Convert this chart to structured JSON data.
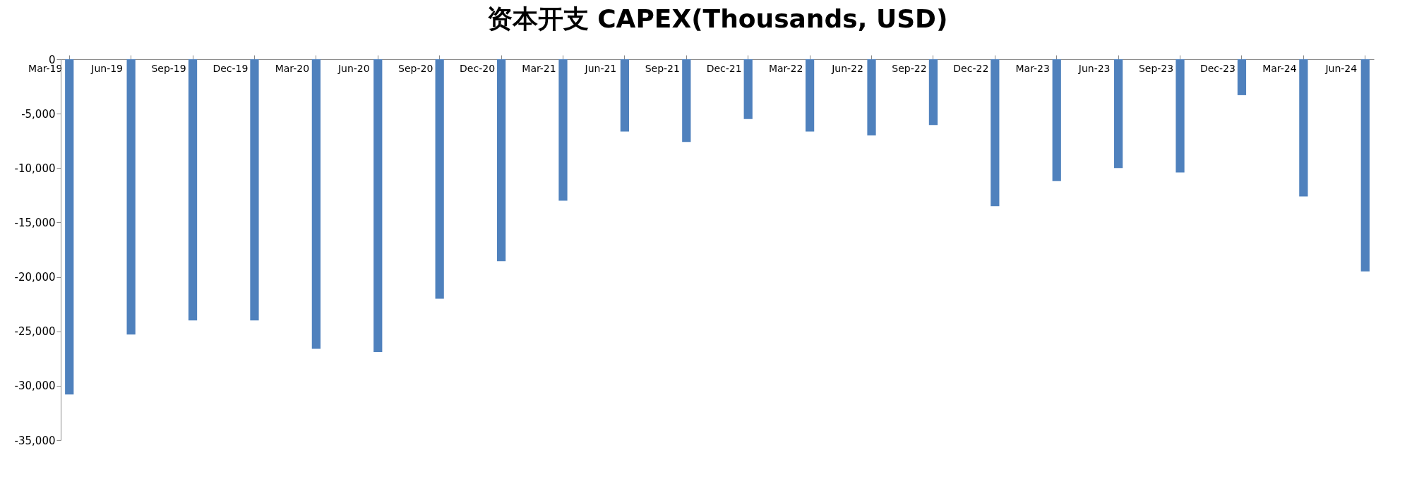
{
  "chart_data": {
    "type": "bar",
    "title": "资本开支 CAPEX(Thousands, USD)",
    "categories": [
      "Mar-19",
      "Jun-19",
      "Sep-19",
      "Dec-19",
      "Mar-20",
      "Jun-20",
      "Sep-20",
      "Dec-20",
      "Mar-21",
      "Jun-21",
      "Sep-21",
      "Dec-21",
      "Mar-22",
      "Jun-22",
      "Sep-22",
      "Dec-22",
      "Mar-23",
      "Jun-23",
      "Sep-23",
      "Dec-23",
      "Mar-24",
      "Jun-24"
    ],
    "values": [
      -30800,
      -25300,
      -24000,
      -24000,
      -26600,
      -26900,
      -22000,
      -18550,
      -13000,
      -6650,
      -7600,
      -5500,
      -6650,
      -7000,
      -6050,
      -13500,
      -11200,
      -10000,
      -10400,
      -3300,
      -12600,
      -19500
    ],
    "color": "#4f81bd",
    "ylim": [
      -35000,
      0
    ],
    "yticks": [
      {
        "value": 0,
        "label": "0"
      },
      {
        "value": -5000,
        "label": "-5,000"
      },
      {
        "value": -10000,
        "label": "-10,000"
      },
      {
        "value": -15000,
        "label": "-15,000"
      },
      {
        "value": -20000,
        "label": "-20,000"
      },
      {
        "value": -25000,
        "label": "-25,000"
      },
      {
        "value": -30000,
        "label": "-30,000"
      },
      {
        "value": -35000,
        "label": "-35,000"
      }
    ],
    "grid": false
  }
}
